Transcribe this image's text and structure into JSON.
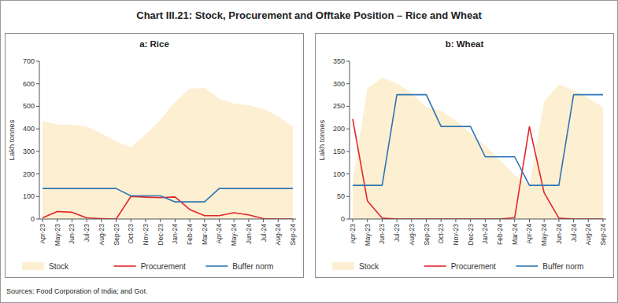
{
  "title": "Chart III.21: Stock, Procurement and Offtake Position – Rice and Wheat",
  "source": "Sources: Food Corporation of India; and GoI.",
  "chart_data": [
    {
      "type": "line",
      "title": "a: Rice",
      "y_label": "Lakh tonnes",
      "legend": "bottom",
      "categories": [
        "Apr-23",
        "May-23",
        "Jun-23",
        "Jul-23",
        "Aug-23",
        "Sep-23",
        "Oct-23",
        "Nov-23",
        "Dec-23",
        "Jan-24",
        "Feb-24",
        "Mar-24",
        "Apr-24",
        "May-24",
        "Jun-24",
        "Jul-24",
        "Aug-24",
        "Sep-24"
      ],
      "ylim": [
        0,
        700
      ],
      "yticks": [
        0,
        100,
        200,
        300,
        400,
        500,
        600,
        700
      ],
      "series": [
        {
          "name": "Stock",
          "type": "area",
          "color": "#fcefd2",
          "values": [
            435,
            420,
            418,
            410,
            380,
            345,
            318,
            375,
            440,
            520,
            578,
            582,
            535,
            512,
            505,
            488,
            455,
            410
          ]
        },
        {
          "name": "Procurement",
          "type": "line",
          "color": "#e3262b",
          "values": [
            5,
            33,
            30,
            5,
            2,
            0,
            100,
            97,
            95,
            98,
            42,
            15,
            15,
            28,
            18,
            2,
            0,
            0
          ]
        },
        {
          "name": "Buffer norm",
          "type": "line",
          "color": "#2e74b5",
          "values": [
            135.4,
            135.4,
            135.4,
            135.4,
            135.4,
            135.4,
            102.5,
            102.5,
            102.5,
            76.1,
            76.1,
            76.1,
            135.4,
            135.4,
            135.4,
            135.4,
            135.4,
            135.4
          ]
        }
      ]
    },
    {
      "type": "line",
      "title": "b: Wheat",
      "y_label": "Lakh tonnes",
      "legend": "bottom",
      "categories": [
        "Apr-23",
        "May-23",
        "Jun-23",
        "Jul-23",
        "Aug-23",
        "Sep-23",
        "Oct-23",
        "Nov-23",
        "Dec-23",
        "Jan-24",
        "Feb-24",
        "Mar-24",
        "Apr-24",
        "May-24",
        "Jun-24",
        "Jul-24",
        "Aug-24",
        "Sep-24"
      ],
      "ylim": [
        0,
        350
      ],
      "yticks": [
        0,
        50,
        100,
        150,
        200,
        250,
        300,
        350
      ],
      "series": [
        {
          "name": "Stock",
          "type": "area",
          "color": "#fcefd2",
          "values": [
            84,
            290,
            314,
            301,
            280,
            248,
            240,
            219,
            190,
            163,
            130,
            97,
            75,
            260,
            299,
            285,
            268,
            248
          ]
        },
        {
          "name": "Procurement",
          "type": "line",
          "color": "#e3262b",
          "values": [
            222,
            40,
            2,
            0,
            0,
            0,
            0,
            0,
            0,
            0,
            0,
            3,
            205,
            58,
            2,
            0,
            0,
            0
          ]
        },
        {
          "name": "Buffer norm",
          "type": "line",
          "color": "#2e74b5",
          "values": [
            74.6,
            74.6,
            74.6,
            275.8,
            275.8,
            275.8,
            205.2,
            205.2,
            205.2,
            138,
            138,
            138,
            74.6,
            74.6,
            74.6,
            275.8,
            275.8,
            275.8
          ]
        }
      ]
    }
  ]
}
